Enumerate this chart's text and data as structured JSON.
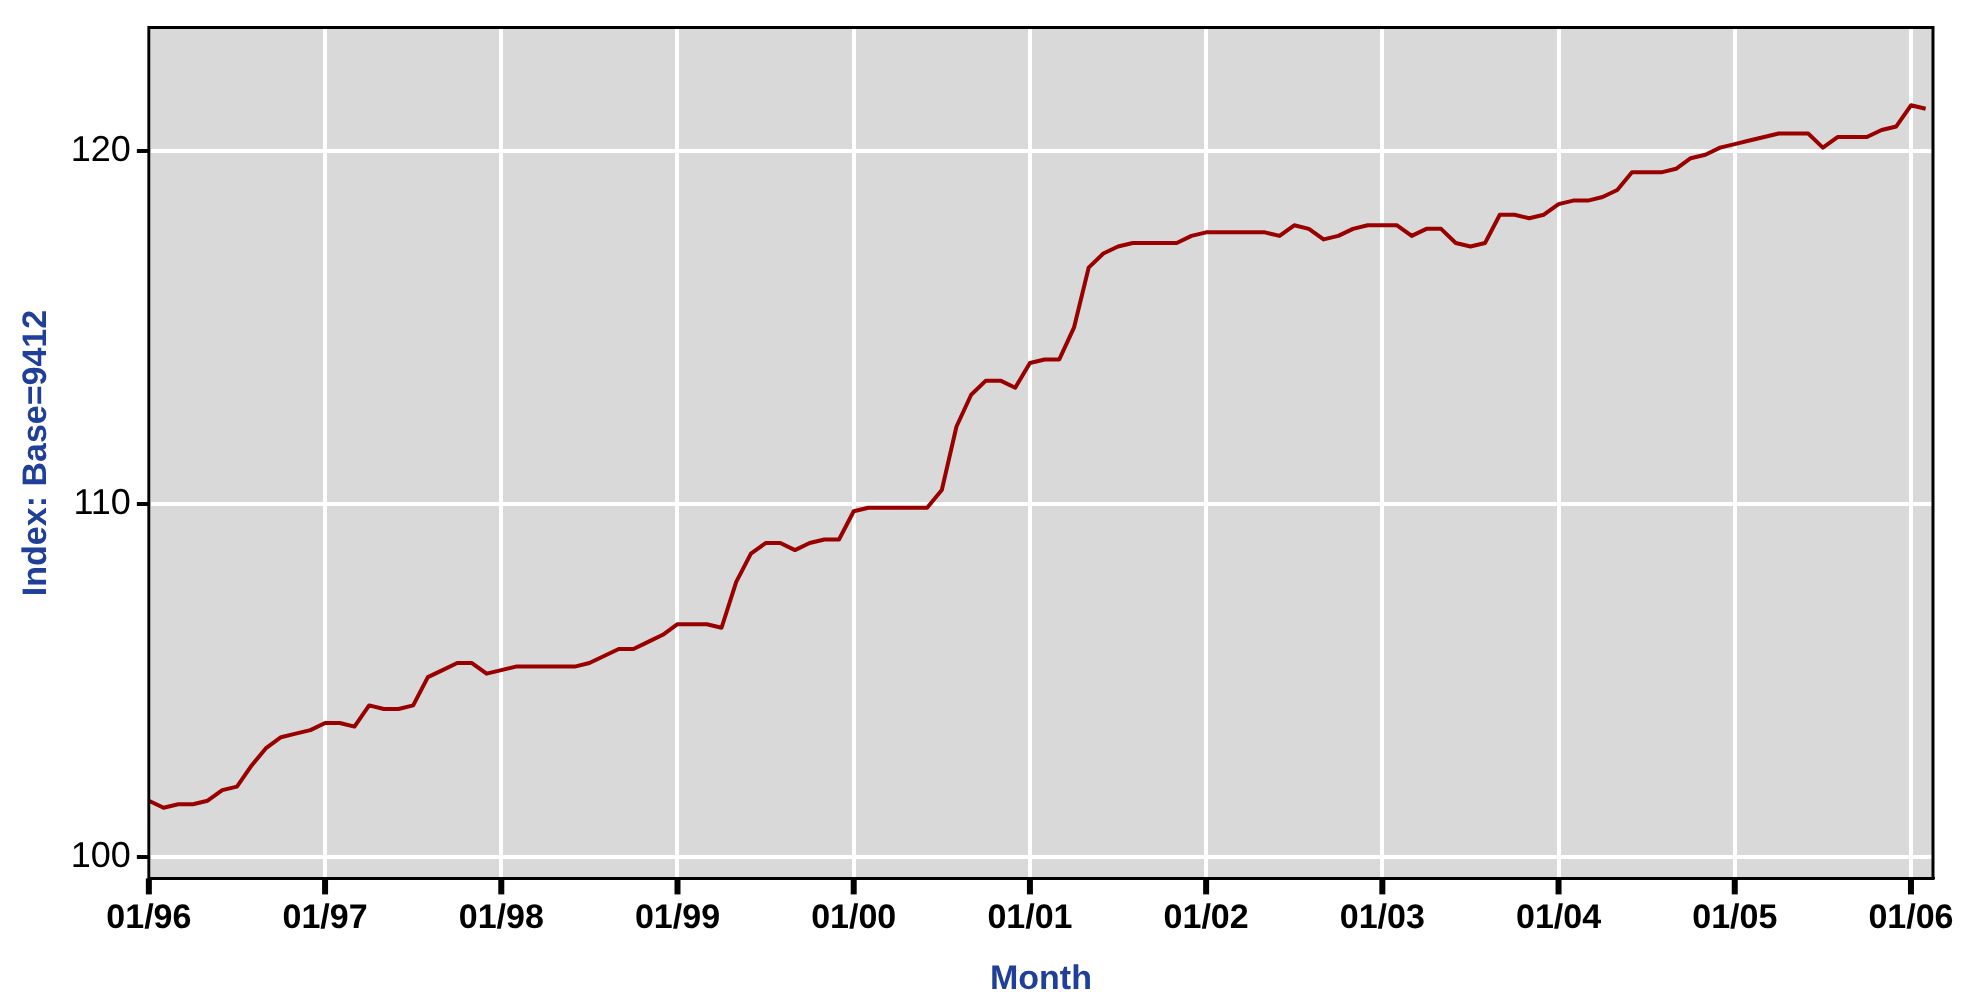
{
  "chart_data": {
    "type": "line",
    "xlabel": "Month",
    "ylabel": "Index: Base=9412",
    "x": [
      "1996-01",
      "1996-02",
      "1996-03",
      "1996-04",
      "1996-05",
      "1996-06",
      "1996-07",
      "1996-08",
      "1996-09",
      "1996-10",
      "1996-11",
      "1996-12",
      "1997-01",
      "1997-02",
      "1997-03",
      "1997-04",
      "1997-05",
      "1997-06",
      "1997-07",
      "1997-08",
      "1997-09",
      "1997-10",
      "1997-11",
      "1997-12",
      "1998-01",
      "1998-02",
      "1998-03",
      "1998-04",
      "1998-05",
      "1998-06",
      "1998-07",
      "1998-08",
      "1998-09",
      "1998-10",
      "1998-11",
      "1998-12",
      "1999-01",
      "1999-02",
      "1999-03",
      "1999-04",
      "1999-05",
      "1999-06",
      "1999-07",
      "1999-08",
      "1999-09",
      "1999-10",
      "1999-11",
      "1999-12",
      "2000-01",
      "2000-02",
      "2000-03",
      "2000-04",
      "2000-05",
      "2000-06",
      "2000-07",
      "2000-08",
      "2000-09",
      "2000-10",
      "2000-11",
      "2000-12",
      "2001-01",
      "2001-02",
      "2001-03",
      "2001-04",
      "2001-05",
      "2001-06",
      "2001-07",
      "2001-08",
      "2001-09",
      "2001-10",
      "2001-11",
      "2001-12",
      "2002-01",
      "2002-02",
      "2002-03",
      "2002-04",
      "2002-05",
      "2002-06",
      "2002-07",
      "2002-08",
      "2002-09",
      "2002-10",
      "2002-11",
      "2002-12",
      "2003-01",
      "2003-02",
      "2003-03",
      "2003-04",
      "2003-05",
      "2003-06",
      "2003-07",
      "2003-08",
      "2003-09",
      "2003-10",
      "2003-11",
      "2003-12",
      "2004-01",
      "2004-02",
      "2004-03",
      "2004-04",
      "2004-05",
      "2004-06",
      "2004-07",
      "2004-08",
      "2004-09",
      "2004-10",
      "2004-11",
      "2004-12",
      "2005-01",
      "2005-02",
      "2005-03",
      "2005-04",
      "2005-05",
      "2005-06",
      "2005-07",
      "2005-08",
      "2005-09",
      "2005-10",
      "2005-11",
      "2005-12",
      "2006-01",
      "2006-02"
    ],
    "series": [
      {
        "color": "#990000",
        "values": [
          101.6,
          101.4,
          101.5,
          101.5,
          101.6,
          101.9,
          102.0,
          102.6,
          103.1,
          103.4,
          103.5,
          103.6,
          103.8,
          103.8,
          103.7,
          104.3,
          104.2,
          104.2,
          104.3,
          105.1,
          105.3,
          105.5,
          105.5,
          105.2,
          105.3,
          105.4,
          105.4,
          105.4,
          105.4,
          105.4,
          105.5,
          105.7,
          105.9,
          105.9,
          106.1,
          106.3,
          106.6,
          106.6,
          106.6,
          106.5,
          107.8,
          108.6,
          108.9,
          108.9,
          108.7,
          108.9,
          109.0,
          109.0,
          109.8,
          109.9,
          109.9,
          109.9,
          109.9,
          109.9,
          110.4,
          112.2,
          113.1,
          113.5,
          113.5,
          113.3,
          114.0,
          114.1,
          114.1,
          115.0,
          116.7,
          117.1,
          117.3,
          117.4,
          117.4,
          117.4,
          117.4,
          117.6,
          117.7,
          117.7,
          117.7,
          117.7,
          117.7,
          117.6,
          117.9,
          117.8,
          117.5,
          117.6,
          117.8,
          117.9,
          117.9,
          117.9,
          117.6,
          117.8,
          117.8,
          117.4,
          117.3,
          117.4,
          118.2,
          118.2,
          118.1,
          118.2,
          118.5,
          118.6,
          118.6,
          118.7,
          118.9,
          119.4,
          119.4,
          119.4,
          119.5,
          119.8,
          119.9,
          120.1,
          120.2,
          120.3,
          120.4,
          120.5,
          120.5,
          120.5,
          120.1,
          120.4,
          120.4,
          120.4,
          120.6,
          120.7,
          121.3,
          121.2
        ]
      }
    ],
    "xlim": [
      "1996-01",
      "2006-02-15"
    ],
    "xticks": [
      {
        "value": "1996-01",
        "label": "01/96"
      },
      {
        "value": "1997-01",
        "label": "01/97"
      },
      {
        "value": "1998-01",
        "label": "01/98"
      },
      {
        "value": "1999-01",
        "label": "01/99"
      },
      {
        "value": "2000-01",
        "label": "01/00"
      },
      {
        "value": "2001-01",
        "label": "01/01"
      },
      {
        "value": "2002-01",
        "label": "01/02"
      },
      {
        "value": "2003-01",
        "label": "01/03"
      },
      {
        "value": "2004-01",
        "label": "01/04"
      },
      {
        "value": "2005-01",
        "label": "01/05"
      },
      {
        "value": "2006-01",
        "label": "01/06"
      }
    ],
    "ylim": [
      99.4,
      123.5
    ],
    "yticks": [
      100,
      110,
      120
    ],
    "grid": true,
    "legend": false,
    "marker": "none",
    "line_style": "solid"
  }
}
